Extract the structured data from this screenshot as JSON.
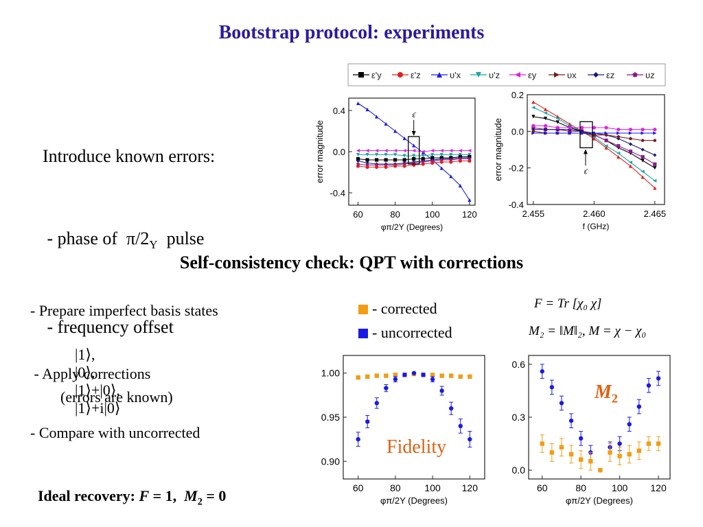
{
  "slide": {
    "title": "Bootstrap protocol: experiments",
    "subtitle": "Self-consistency check: QPT with corrections"
  },
  "intro": {
    "l1": "Introduce known errors:",
    "l2a": " - phase of  π/2",
    "l2sub": "Y",
    "l2b": "  pulse",
    "l3": " - frequency offset"
  },
  "bullets": {
    "b1": "- Prepare imperfect basis states",
    "states": [
      "|1⟩,",
      "|0⟩,",
      "|1⟩+|0⟩,",
      "|1⟩+i|0⟩"
    ],
    "b2a": " - Apply corrections",
    "b2b": "(errors are known)",
    "b3": "- Compare with uncorrected",
    "ideal_pre": "Ideal recovery: ",
    "ideal_F": "F",
    "ideal_mid": " = 1,  ",
    "ideal_M": "M",
    "ideal_sub": "2",
    "ideal_end": " = 0"
  },
  "legend2": {
    "corrected": "- corrected",
    "uncorrected": "- uncorrected",
    "corrected_color": "#f39c12",
    "uncorrected_color": "#1a1ae6"
  },
  "formulas": {
    "f1": "F = Tr [χ₀ χ]",
    "f2": "M₂ = ‖M‖₂,  M = χ − χ₀"
  },
  "labels": {
    "fidelity": "Fidelity",
    "m2": "M",
    "m2sub": "2",
    "eps": "ε̄"
  },
  "legend_top": {
    "entries": [
      {
        "label": "ε'y",
        "color": "#000000",
        "marker": "square"
      },
      {
        "label": "ε'z",
        "color": "#e02020",
        "marker": "circle"
      },
      {
        "label": "υ'x",
        "color": "#1a1ae6",
        "marker": "triangle-up"
      },
      {
        "label": "υ'z",
        "color": "#1aa5a5",
        "marker": "triangle-down"
      },
      {
        "label": "εy",
        "color": "#e020e0",
        "marker": "triangle-left"
      },
      {
        "label": "υx",
        "color": "#7a1a1a",
        "marker": "triangle-right"
      },
      {
        "label": "εz",
        "color": "#1a1a7a",
        "marker": "diamond"
      },
      {
        "label": "υz",
        "color": "#8a1a8a",
        "marker": "pentagon"
      }
    ]
  },
  "chart_data": [
    {
      "type": "line",
      "id": "phase",
      "xlabel": "φπ/2Y (Degrees)",
      "ylabel": "error magnitude",
      "xlim": [
        55,
        123
      ],
      "ylim": [
        -0.52,
        0.52
      ],
      "xticks": [
        60,
        80,
        100,
        120
      ],
      "yticks": [
        -0.4,
        0.0,
        0.4
      ],
      "ytick_labels": [
        "-0.4",
        "0.0",
        "0.4"
      ],
      "x": [
        60,
        65,
        70,
        75,
        80,
        85,
        90,
        95,
        100,
        105,
        110,
        115,
        120
      ],
      "series": [
        {
          "color": "#1a1ae6",
          "values": [
            0.47,
            0.41,
            0.34,
            0.27,
            0.2,
            0.13,
            0.06,
            -0.01,
            -0.08,
            -0.16,
            -0.24,
            -0.33,
            -0.47
          ]
        },
        {
          "color": "#e020e0",
          "values": [
            0.01,
            0.01,
            0.01,
            0.01,
            0.01,
            0.01,
            0.01,
            0.0,
            0.01,
            0.01,
            0.01,
            0.01,
            0.01
          ]
        },
        {
          "color": "#1aa5a5",
          "values": [
            -0.03,
            -0.03,
            -0.03,
            -0.03,
            -0.03,
            -0.04,
            -0.04,
            -0.04,
            -0.03,
            -0.03,
            -0.03,
            -0.03,
            -0.03
          ]
        },
        {
          "color": "#000000",
          "values": [
            -0.07,
            -0.08,
            -0.08,
            -0.08,
            -0.08,
            -0.08,
            -0.07,
            -0.07,
            -0.06,
            -0.06,
            -0.06,
            -0.05,
            -0.05
          ]
        },
        {
          "color": "#1a1a7a",
          "values": [
            -0.09,
            -0.11,
            -0.12,
            -0.12,
            -0.12,
            -0.11,
            -0.1,
            -0.09,
            -0.08,
            -0.07,
            -0.07,
            -0.06,
            -0.06
          ]
        },
        {
          "color": "#8a1a8a",
          "values": [
            -0.12,
            -0.13,
            -0.13,
            -0.13,
            -0.13,
            -0.12,
            -0.11,
            -0.1,
            -0.09,
            -0.08,
            -0.08,
            -0.07,
            -0.07
          ]
        },
        {
          "color": "#e02020",
          "values": [
            -0.14,
            -0.15,
            -0.15,
            -0.15,
            -0.14,
            -0.14,
            -0.13,
            -0.12,
            -0.11,
            -0.1,
            -0.1,
            -0.09,
            -0.09
          ]
        }
      ]
    },
    {
      "type": "line",
      "id": "freq",
      "xlabel": "f (GHz)",
      "ylabel": "error magnitude",
      "xlim": [
        2.4545,
        2.4658
      ],
      "ylim": [
        -0.4,
        0.2
      ],
      "xticks": [
        2.455,
        2.46,
        2.465
      ],
      "xtick_labels": [
        "2.455",
        "2.460",
        "2.465"
      ],
      "yticks": [
        -0.4,
        -0.2,
        0.0,
        0.2
      ],
      "ytick_labels": [
        "-0.4",
        "-0.2",
        "0.0",
        "0.2"
      ],
      "x": [
        2.455,
        2.456,
        2.457,
        2.458,
        2.459,
        2.46,
        2.461,
        2.462,
        2.463,
        2.464,
        2.465
      ],
      "series": [
        {
          "color": "#e02020",
          "values": [
            0.16,
            0.12,
            0.08,
            0.04,
            0.0,
            -0.04,
            -0.09,
            -0.14,
            -0.19,
            -0.25,
            -0.31
          ]
        },
        {
          "color": "#1aa5a5",
          "values": [
            0.13,
            0.1,
            0.07,
            0.03,
            0.0,
            -0.03,
            -0.08,
            -0.12,
            -0.17,
            -0.22,
            -0.27
          ]
        },
        {
          "color": "#000000",
          "values": [
            0.08,
            0.07,
            0.05,
            0.02,
            0.0,
            -0.02,
            -0.05,
            -0.09,
            -0.12,
            -0.16,
            -0.2
          ]
        },
        {
          "color": "#8a1a8a",
          "values": [
            0.02,
            0.01,
            0.01,
            0.0,
            0.0,
            -0.02,
            -0.05,
            -0.08,
            -0.11,
            -0.14,
            -0.18
          ]
        },
        {
          "color": "#1a1a7a",
          "values": [
            0.01,
            0.01,
            0.01,
            0.01,
            0.0,
            -0.01,
            -0.02,
            -0.04,
            -0.07,
            -0.1,
            -0.13
          ]
        },
        {
          "color": "#7a1a1a",
          "values": [
            0.0,
            -0.01,
            -0.01,
            -0.01,
            -0.01,
            -0.02,
            -0.02,
            -0.03,
            -0.04,
            -0.05,
            -0.05
          ]
        },
        {
          "color": "#e020e0",
          "values": [
            0.03,
            0.03,
            0.02,
            0.02,
            0.02,
            0.02,
            0.02,
            0.01,
            0.01,
            0.01,
            0.01
          ]
        },
        {
          "color": "#1a1ae6",
          "values": [
            -0.01,
            -0.01,
            -0.01,
            -0.01,
            -0.01,
            -0.01,
            -0.01,
            -0.01,
            -0.01,
            -0.01,
            -0.01
          ]
        }
      ]
    },
    {
      "type": "scatter",
      "id": "fidelity",
      "xlabel": "φπ/2Y (Degrees)",
      "ylabel": "",
      "xlim": [
        52,
        128
      ],
      "ylim": [
        0.88,
        1.02
      ],
      "xticks": [
        60,
        80,
        100,
        120
      ],
      "yticks": [
        0.9,
        0.95,
        1.0
      ],
      "ytick_labels": [
        "0.90",
        "0.95",
        "1.00"
      ],
      "x": [
        60,
        65,
        70,
        75,
        80,
        85,
        90,
        95,
        100,
        105,
        110,
        115,
        120
      ],
      "series": [
        {
          "name": "corrected",
          "color": "#f39c12",
          "marker": "square",
          "values": [
            0.995,
            0.996,
            0.997,
            0.997,
            0.998,
            0.998,
            0.999,
            0.998,
            0.998,
            0.997,
            0.997,
            0.996,
            0.996
          ]
        },
        {
          "name": "uncorrected",
          "color": "#1a1ae6",
          "marker": "circle",
          "values": [
            0.925,
            0.945,
            0.966,
            0.983,
            0.993,
            0.998,
            1.0,
            0.998,
            0.993,
            0.98,
            0.96,
            0.94,
            0.925
          ],
          "errors": [
            0.008,
            0.007,
            0.006,
            0.004,
            0.003,
            0.002,
            0.001,
            0.002,
            0.003,
            0.005,
            0.007,
            0.008,
            0.009
          ]
        }
      ]
    },
    {
      "type": "scatter",
      "id": "m2",
      "xlabel": "φπ/2Y (Degrees)",
      "ylabel": "",
      "xlim": [
        53,
        126
      ],
      "ylim": [
        -0.05,
        0.65
      ],
      "xticks": [
        60,
        80,
        100,
        120
      ],
      "yticks": [
        0.0,
        0.3,
        0.6
      ],
      "ytick_labels": [
        "0.0",
        "0.3",
        "0.6"
      ],
      "x": [
        60,
        65,
        70,
        75,
        80,
        85,
        90,
        95,
        100,
        105,
        110,
        115,
        120
      ],
      "series": [
        {
          "name": "uncorrected",
          "color": "#1a1ae6",
          "marker": "circle",
          "values": [
            0.56,
            0.47,
            0.38,
            0.28,
            0.18,
            0.1,
            0.0,
            0.13,
            0.15,
            0.26,
            0.36,
            0.48,
            0.52
          ],
          "errors": [
            0.04,
            0.04,
            0.04,
            0.04,
            0.04,
            0.04,
            0.0,
            0.03,
            0.04,
            0.04,
            0.04,
            0.04,
            0.04
          ]
        },
        {
          "name": "corrected",
          "color": "#f39c12",
          "marker": "square",
          "values": [
            0.15,
            0.1,
            0.13,
            0.09,
            0.06,
            0.05,
            0.0,
            0.1,
            0.08,
            0.09,
            0.11,
            0.15,
            0.15
          ],
          "errors": [
            0.05,
            0.05,
            0.05,
            0.05,
            0.05,
            0.05,
            0.0,
            0.05,
            0.05,
            0.05,
            0.05,
            0.04,
            0.04
          ]
        }
      ]
    }
  ]
}
